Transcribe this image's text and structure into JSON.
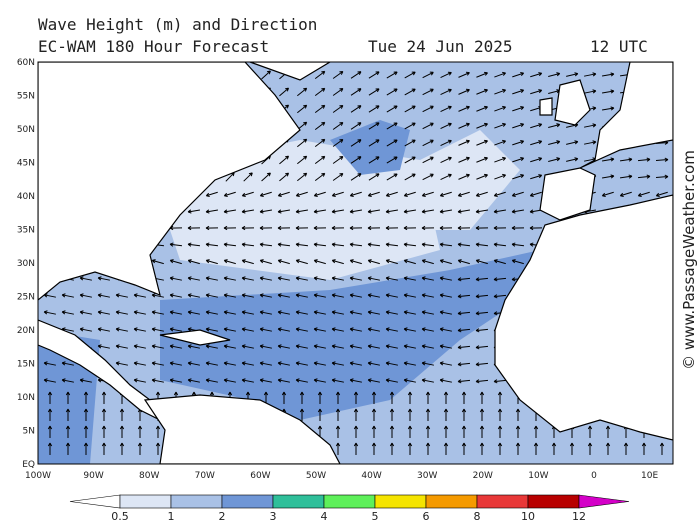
{
  "header": {
    "title": "Wave Height (m) and Direction",
    "subtitle": "EC-WAM 180 Hour Forecast",
    "date": "Tue 24 Jun 2025",
    "time": "12 UTC"
  },
  "map": {
    "lat_labels": [
      "60N",
      "55N",
      "50N",
      "45N",
      "40N",
      "35N",
      "30N",
      "25N",
      "20N",
      "15N",
      "10N",
      "5N",
      "EQ"
    ],
    "lon_labels": [
      "100W",
      "90W",
      "80W",
      "70W",
      "60W",
      "50W",
      "40W",
      "30W",
      "20W",
      "10W",
      "0",
      "10E"
    ]
  },
  "colorbar": {
    "labels": [
      "0.5",
      "1",
      "2",
      "3",
      "4",
      "5",
      "6",
      "8",
      "10",
      "12"
    ],
    "colors": [
      "#ffffff",
      "#dde6f5",
      "#a9c1e6",
      "#6f96d6",
      "#2fbf9a",
      "#5ef05a",
      "#f5e400",
      "#f59a00",
      "#e83838",
      "#b80000",
      "#d400c8"
    ]
  },
  "watermark": "© www.PassageWeather.com"
}
